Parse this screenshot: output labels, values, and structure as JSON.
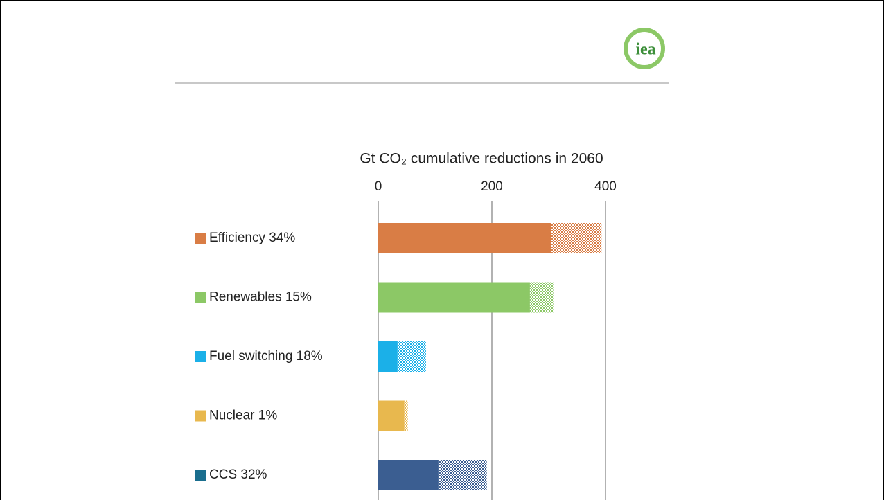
{
  "logo": "iea",
  "chart_data": {
    "type": "hbar_stacked",
    "title": "Gt CO₂ cumulative reductions in 2060",
    "categories": [
      "Efficiency 34%",
      "Renewables 15%",
      "Fuel switching 18%",
      "Nuclear 1%",
      "CCS 32%"
    ],
    "colors": [
      "#d97d45",
      "#8cc866",
      "#1bb0e8",
      "#e8b84e",
      "#3b5e91"
    ],
    "legend_colors": [
      "#d97d45",
      "#8cc866",
      "#1bb0e8",
      "#e8b84e",
      "#1a6e8e"
    ],
    "series": [
      {
        "values": [
          304,
          267,
          34,
          46,
          106
        ]
      },
      {
        "values": [
          89,
          41,
          50,
          6,
          85
        ],
        "pattern": "hatched"
      }
    ],
    "xlim": [
      0,
      400
    ],
    "xticks": [
      0,
      200,
      400
    ],
    "grid": true
  }
}
